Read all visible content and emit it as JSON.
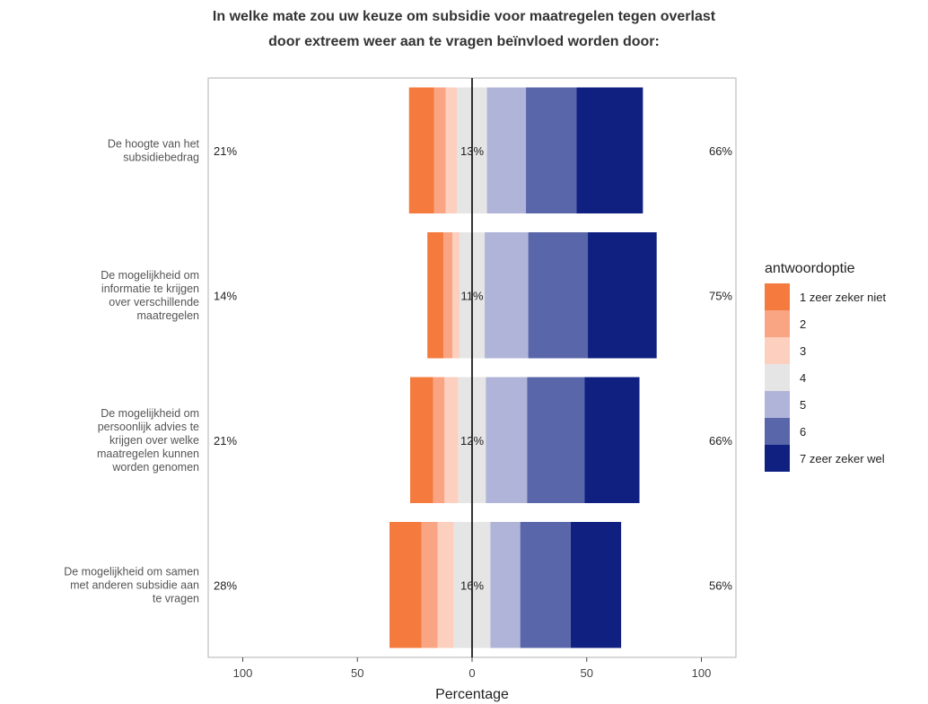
{
  "chart_data": {
    "type": "bar",
    "subtype": "diverging-stacked-horizontal",
    "title_lines": [
      "In welke mate zou uw keuze om subsidie voor maatregelen tegen overlast",
      "door extreem weer aan te vragen beïnvloed worden door:"
    ],
    "xlabel": "Percentage",
    "xlim": [
      -115,
      115
    ],
    "x_ticks": [
      {
        "value": -100,
        "label": "100"
      },
      {
        "value": -50,
        "label": "50"
      },
      {
        "value": 0,
        "label": "0"
      },
      {
        "value": 50,
        "label": "50"
      },
      {
        "value": 100,
        "label": "100"
      }
    ],
    "legend": {
      "title": "antwoordoptie",
      "position": "right",
      "entries": [
        {
          "label": "1 zeer zeker niet",
          "color": "#F47A3E"
        },
        {
          "label": "2",
          "color": "#F9A583"
        },
        {
          "label": "3",
          "color": "#FCCFBE"
        },
        {
          "label": "4",
          "color": "#E5E5E5"
        },
        {
          "label": "5",
          "color": "#B0B4D8"
        },
        {
          "label": "6",
          "color": "#5A66AA"
        },
        {
          "label": "7 zeer zeker wel",
          "color": "#102080"
        }
      ]
    },
    "categories": [
      {
        "label_lines": [
          "De hoogte van het",
          "subsidiebedrag"
        ],
        "values": [
          11,
          5,
          5,
          13,
          17,
          22,
          29
        ],
        "left_pct": "21%",
        "neutral_pct": "13%",
        "right_pct": "66%"
      },
      {
        "label_lines": [
          "De mogelijkheid om",
          "informatie te krijgen",
          "over verschillende",
          "maatregelen"
        ],
        "values": [
          7,
          4,
          3,
          11,
          19,
          26,
          30
        ],
        "left_pct": "14%",
        "neutral_pct": "11%",
        "right_pct": "75%"
      },
      {
        "label_lines": [
          "De mogelijkheid om",
          "persoonlijk advies te",
          "krijgen over welke",
          "maatregelen kunnen",
          "worden genomen"
        ],
        "values": [
          10,
          5,
          6,
          12,
          18,
          25,
          24
        ],
        "left_pct": "21%",
        "neutral_pct": "12%",
        "right_pct": "66%"
      },
      {
        "label_lines": [
          "De mogelijkheid om samen",
          "met anderen subsidie aan",
          "te vragen"
        ],
        "values": [
          14,
          7,
          7,
          16,
          13,
          22,
          22
        ],
        "left_pct": "28%",
        "neutral_pct": "16%",
        "right_pct": "56%"
      }
    ]
  }
}
